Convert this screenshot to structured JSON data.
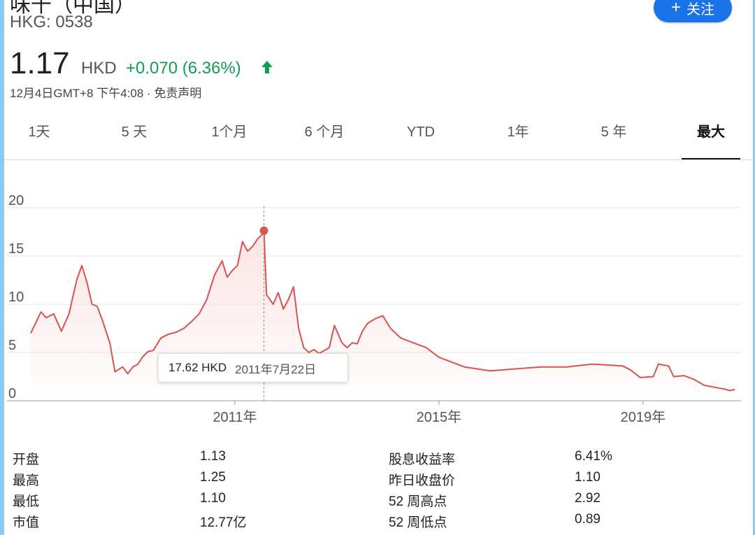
{
  "header": {
    "company_name": "味千（中国）",
    "ticker": "HKG: 0538",
    "follow_label": "关注"
  },
  "quote": {
    "price": "1.17",
    "currency": "HKD",
    "change": "+0.070 (6.36%)",
    "timestamp": "12月4日GMT+8 下午4:08 · 免责声明",
    "change_color": "#0f9d58"
  },
  "tabs": [
    {
      "label": "1天"
    },
    {
      "label": "5 天"
    },
    {
      "label": "1个月"
    },
    {
      "label": "6 个月"
    },
    {
      "label": "YTD"
    },
    {
      "label": "1年"
    },
    {
      "label": "5 年"
    },
    {
      "label": "最大",
      "active": true
    }
  ],
  "chart_data": {
    "type": "area",
    "x_unit": "year",
    "y_ticks": [
      0,
      5,
      10,
      15,
      20
    ],
    "ylim": [
      0,
      20
    ],
    "x_ticks": [
      {
        "value": 2011,
        "label": "2011年"
      },
      {
        "value": 2015,
        "label": "2015年"
      },
      {
        "value": 2019,
        "label": "2019年"
      }
    ],
    "xlim": [
      2007.0,
      2020.92
    ],
    "line_color": "#d9534f",
    "fill_color": "#fbe3e2",
    "grid": true,
    "series": [
      {
        "x": [
          2007.0,
          2007.2,
          2007.3,
          2007.45,
          2007.6,
          2007.75,
          2007.9,
          2008.0,
          2008.1,
          2008.2,
          2008.3,
          2008.4,
          2008.55,
          2008.65,
          2008.8,
          2008.9,
          2009.0,
          2009.1,
          2009.2,
          2009.3,
          2009.4,
          2009.55,
          2009.7,
          2009.85,
          2010.0,
          2010.15,
          2010.3,
          2010.45,
          2010.6,
          2010.75,
          2010.85,
          2010.95,
          2011.05,
          2011.15,
          2011.25,
          2011.35,
          2011.45,
          2011.55,
          2011.57,
          2011.62,
          2011.75,
          2011.85,
          2011.95,
          2012.05,
          2012.15,
          2012.25,
          2012.35,
          2012.45,
          2012.55,
          2012.65,
          2012.75,
          2012.85,
          2012.95,
          2013.1,
          2013.2,
          2013.3,
          2013.4,
          2013.5,
          2013.6,
          2013.75,
          2013.9,
          2014.05,
          2014.25,
          2014.5,
          2014.75,
          2015.0,
          2015.25,
          2015.5,
          2015.75,
          2016.0,
          2016.5,
          2017.0,
          2017.5,
          2018.0,
          2018.3,
          2018.6,
          2018.75,
          2018.95,
          2019.2,
          2019.3,
          2019.5,
          2019.6,
          2019.8,
          2020.0,
          2020.2,
          2020.4,
          2020.6,
          2020.7,
          2020.8
        ],
        "y": [
          7.0,
          9.2,
          8.6,
          9.0,
          7.2,
          9.0,
          12.5,
          14.0,
          12.3,
          10.0,
          9.8,
          8.4,
          6.0,
          3.0,
          3.5,
          2.8,
          3.5,
          3.8,
          4.6,
          5.1,
          5.2,
          6.5,
          6.9,
          7.1,
          7.5,
          8.2,
          9.0,
          10.5,
          13.0,
          14.5,
          12.8,
          13.5,
          14.0,
          16.5,
          15.5,
          16.0,
          16.8,
          17.3,
          17.62,
          11.0,
          10.0,
          11.2,
          9.5,
          10.5,
          11.8,
          7.5,
          5.5,
          5.0,
          5.3,
          4.9,
          5.2,
          5.5,
          7.8,
          6.0,
          5.5,
          6.0,
          5.9,
          7.2,
          8.0,
          8.5,
          8.8,
          7.5,
          6.5,
          6.0,
          5.5,
          4.5,
          4.0,
          3.5,
          3.3,
          3.1,
          3.3,
          3.5,
          3.5,
          3.8,
          3.7,
          3.6,
          3.2,
          2.4,
          2.5,
          3.8,
          3.6,
          2.5,
          2.6,
          2.2,
          1.6,
          1.4,
          1.2,
          1.05,
          1.17
        ]
      }
    ],
    "highlight": {
      "x": 2011.57,
      "y": 17.62,
      "price_label": "17.62 HKD",
      "date_label": "2011年7月22日"
    }
  },
  "stats": {
    "left": [
      {
        "label": "开盘",
        "value": "1.13"
      },
      {
        "label": "最高",
        "value": "1.25"
      },
      {
        "label": "最低",
        "value": "1.10"
      },
      {
        "label": "市值",
        "value": "12.77亿"
      }
    ],
    "right": [
      {
        "label": "股息收益率",
        "value": "6.41%"
      },
      {
        "label": "昨日收盘价",
        "value": "1.10"
      },
      {
        "label": "52 周高点",
        "value": "2.92"
      },
      {
        "label": "52 周低点",
        "value": "0.89"
      }
    ]
  }
}
